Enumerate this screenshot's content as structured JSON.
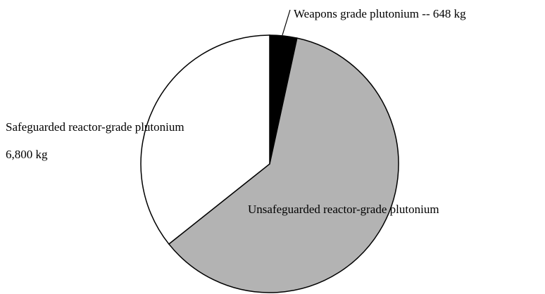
{
  "chart_data": {
    "type": "pie",
    "categories": [
      "Weapons grade plutonium --",
      "Unsafeguarded reactor-grade plutonium",
      "Safeguarded reactor-grade plutonium"
    ],
    "values": [
      648,
      11600,
      6800
    ],
    "value_labels": [
      "648 kg",
      null,
      "6,800 kg"
    ],
    "colors": [
      "#000000",
      "#b3b3b3",
      "#ffffff"
    ]
  }
}
